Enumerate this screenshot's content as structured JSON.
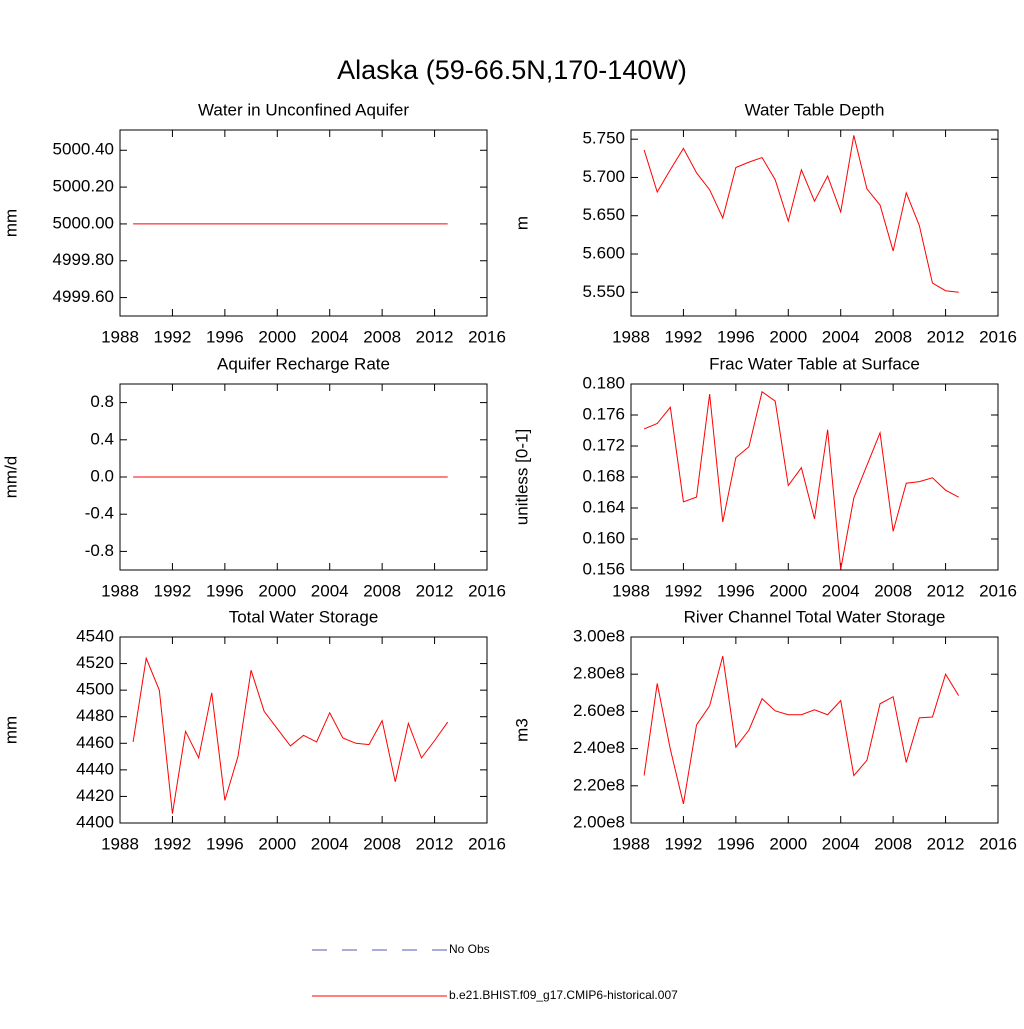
{
  "title": "Alaska (59-66.5N,170-140W)",
  "legend": [
    {
      "name": "No Obs",
      "color": "#5a5ab4",
      "dash": true
    },
    {
      "name": "b.e21.BHIST.f09_g17.CMIP6-historical.007",
      "color": "#ff0000"
    }
  ],
  "chart_data": [
    {
      "type": "line",
      "title": "Water in Unconfined Aquifer",
      "y_label": "mm",
      "x": [
        1989,
        1990,
        1991,
        1992,
        1993,
        1994,
        1995,
        1996,
        1997,
        1998,
        1999,
        2000,
        2001,
        2002,
        2003,
        2004,
        2005,
        2006,
        2007,
        2008,
        2009,
        2010,
        2011,
        2012,
        2013
      ],
      "xlim": [
        1988,
        2016
      ],
      "xticks": [
        1988,
        1992,
        1996,
        2000,
        2004,
        2008,
        2012,
        2016
      ],
      "ylim": [
        4999.5,
        5000.51
      ],
      "yticks": [
        {
          "value": 4999.6,
          "label": "4999.60"
        },
        {
          "value": 4999.8,
          "label": "4999.80"
        },
        {
          "value": 5000,
          "label": "5000.00"
        },
        {
          "value": 5000.2,
          "label": "5000.20"
        },
        {
          "value": 5000.4,
          "label": "5000.40"
        }
      ],
      "series": [
        {
          "color": "#ff0000",
          "values": [
            5000,
            5000,
            5000,
            5000,
            5000,
            5000,
            5000,
            5000,
            5000,
            5000,
            5000,
            5000,
            5000,
            5000,
            5000,
            5000,
            5000,
            5000,
            5000,
            5000,
            5000,
            5000,
            5000,
            5000,
            5000
          ]
        }
      ]
    },
    {
      "type": "line",
      "title": "Water Table Depth",
      "y_label": "m",
      "x": [
        1989,
        1990,
        1991,
        1992,
        1993,
        1994,
        1995,
        1996,
        1997,
        1998,
        1999,
        2000,
        2001,
        2002,
        2003,
        2004,
        2005,
        2006,
        2007,
        2008,
        2009,
        2010,
        2011,
        2012,
        2013
      ],
      "xlim": [
        1988,
        2016
      ],
      "xticks": [
        1988,
        1992,
        1996,
        2000,
        2004,
        2008,
        2012,
        2016
      ],
      "ylim": [
        5.519,
        5.762
      ],
      "yticks": [
        {
          "value": 5.55,
          "label": "5.550"
        },
        {
          "value": 5.6,
          "label": "5.600"
        },
        {
          "value": 5.65,
          "label": "5.650"
        },
        {
          "value": 5.7,
          "label": "5.700"
        },
        {
          "value": 5.75,
          "label": "5.750"
        }
      ],
      "series": [
        {
          "color": "#ff0000",
          "values": [
            5.736,
            5.681,
            5.71,
            5.738,
            5.706,
            5.684,
            5.647,
            5.713,
            5.72,
            5.726,
            5.697,
            5.643,
            5.71,
            5.669,
            5.702,
            5.655,
            5.755,
            5.685,
            5.664,
            5.604,
            5.68,
            5.637,
            5.562,
            5.552,
            5.55
          ]
        }
      ]
    },
    {
      "type": "line",
      "title": "Aquifer Recharge Rate",
      "y_label": "mm/d",
      "x": [
        1989,
        1990,
        1991,
        1992,
        1993,
        1994,
        1995,
        1996,
        1997,
        1998,
        1999,
        2000,
        2001,
        2002,
        2003,
        2004,
        2005,
        2006,
        2007,
        2008,
        2009,
        2010,
        2011,
        2012,
        2013
      ],
      "xlim": [
        1988,
        2016
      ],
      "xticks": [
        1988,
        1992,
        1996,
        2000,
        2004,
        2008,
        2012,
        2016
      ],
      "ylim": [
        -1,
        1
      ],
      "yticks": [
        -0.8,
        -0.4,
        {
          "value": 0,
          "label": "0.0"
        },
        0.4,
        0.8
      ],
      "series": [
        {
          "color": "#ff0000",
          "values": [
            0,
            0,
            0,
            0,
            0,
            0,
            0,
            0,
            0,
            0,
            0,
            0,
            0,
            0,
            0,
            0,
            0,
            0,
            0,
            0,
            0,
            0,
            0,
            0,
            0
          ]
        }
      ]
    },
    {
      "type": "line",
      "title": "Frac Water Table at Surface",
      "y_label": "unitless [0-1]",
      "x": [
        1989,
        1990,
        1991,
        1992,
        1993,
        1994,
        1995,
        1996,
        1997,
        1998,
        1999,
        2000,
        2001,
        2002,
        2003,
        2004,
        2005,
        2006,
        2007,
        2008,
        2009,
        2010,
        2011,
        2012,
        2013
      ],
      "xlim": [
        1988,
        2016
      ],
      "xticks": [
        1988,
        1992,
        1996,
        2000,
        2004,
        2008,
        2012,
        2016
      ],
      "ylim": [
        0.156,
        0.18
      ],
      "yticks": [
        0.156,
        {
          "value": 0.16,
          "label": "0.160"
        },
        0.164,
        0.168,
        0.172,
        0.176,
        {
          "value": 0.18,
          "label": "0.180"
        }
      ],
      "series": [
        {
          "color": "#ff0000",
          "values": [
            0.1742,
            0.1749,
            0.177,
            0.1648,
            0.1654,
            0.1787,
            0.1622,
            0.1705,
            0.1719,
            0.179,
            0.1778,
            0.1669,
            0.1692,
            0.1626,
            0.1741,
            0.1561,
            0.1653,
            0.1695,
            0.1737,
            0.161,
            0.1672,
            0.1674,
            0.1679,
            0.1663,
            0.1654
          ]
        }
      ]
    },
    {
      "type": "line",
      "title": "Total Water Storage",
      "y_label": "mm",
      "x": [
        1989,
        1990,
        1991,
        1992,
        1993,
        1994,
        1995,
        1996,
        1997,
        1998,
        1999,
        2000,
        2001,
        2002,
        2003,
        2004,
        2005,
        2006,
        2007,
        2008,
        2009,
        2010,
        2011,
        2012,
        2013
      ],
      "xlim": [
        1988,
        2016
      ],
      "xticks": [
        1988,
        1992,
        1996,
        2000,
        2004,
        2008,
        2012,
        2016
      ],
      "ylim": [
        4400,
        4540
      ],
      "yticks": [
        4400,
        4420,
        4440,
        4460,
        4480,
        4500,
        4520,
        4540
      ],
      "series": [
        {
          "color": "#ff0000",
          "values": [
            4461,
            4524,
            4500,
            4407,
            4469,
            4449,
            4498,
            4417,
            4450,
            4515,
            4484,
            4471,
            4458,
            4466,
            4461,
            4483,
            4464,
            4460,
            4459,
            4477,
            4431,
            4475,
            4449,
            4462,
            4476
          ]
        }
      ]
    },
    {
      "type": "line",
      "title": "River Channel Total Water Storage",
      "y_label": "m3",
      "x": [
        1989,
        1990,
        1991,
        1992,
        1993,
        1994,
        1995,
        1996,
        1997,
        1998,
        1999,
        2000,
        2001,
        2002,
        2003,
        2004,
        2005,
        2006,
        2007,
        2008,
        2009,
        2010,
        2011,
        2012,
        2013
      ],
      "xlim": [
        1988,
        2016
      ],
      "xticks": [
        1988,
        1992,
        1996,
        2000,
        2004,
        2008,
        2012,
        2016
      ],
      "ylim": [
        200000000,
        300000000
      ],
      "yticks": [
        {
          "value": 200000000,
          "label": "2.00e8"
        },
        {
          "value": 220000000,
          "label": "2.20e8"
        },
        {
          "value": 240000000,
          "label": "2.40e8"
        },
        {
          "value": 260000000,
          "label": "2.60e8"
        },
        {
          "value": 280000000,
          "label": "2.80e8"
        },
        {
          "value": 300000000,
          "label": "3.00e8"
        }
      ],
      "series": [
        {
          "color": "#ff0000",
          "values": [
            225500000,
            275000000,
            239700000,
            210300000,
            252700000,
            263000000,
            289700000,
            240800000,
            250000000,
            266800000,
            260300000,
            258200000,
            258200000,
            260900000,
            258200000,
            265800000,
            225500000,
            233700000,
            264100000,
            267900000,
            232600000,
            256500000,
            257000000,
            280000000,
            268500000
          ]
        }
      ]
    }
  ]
}
